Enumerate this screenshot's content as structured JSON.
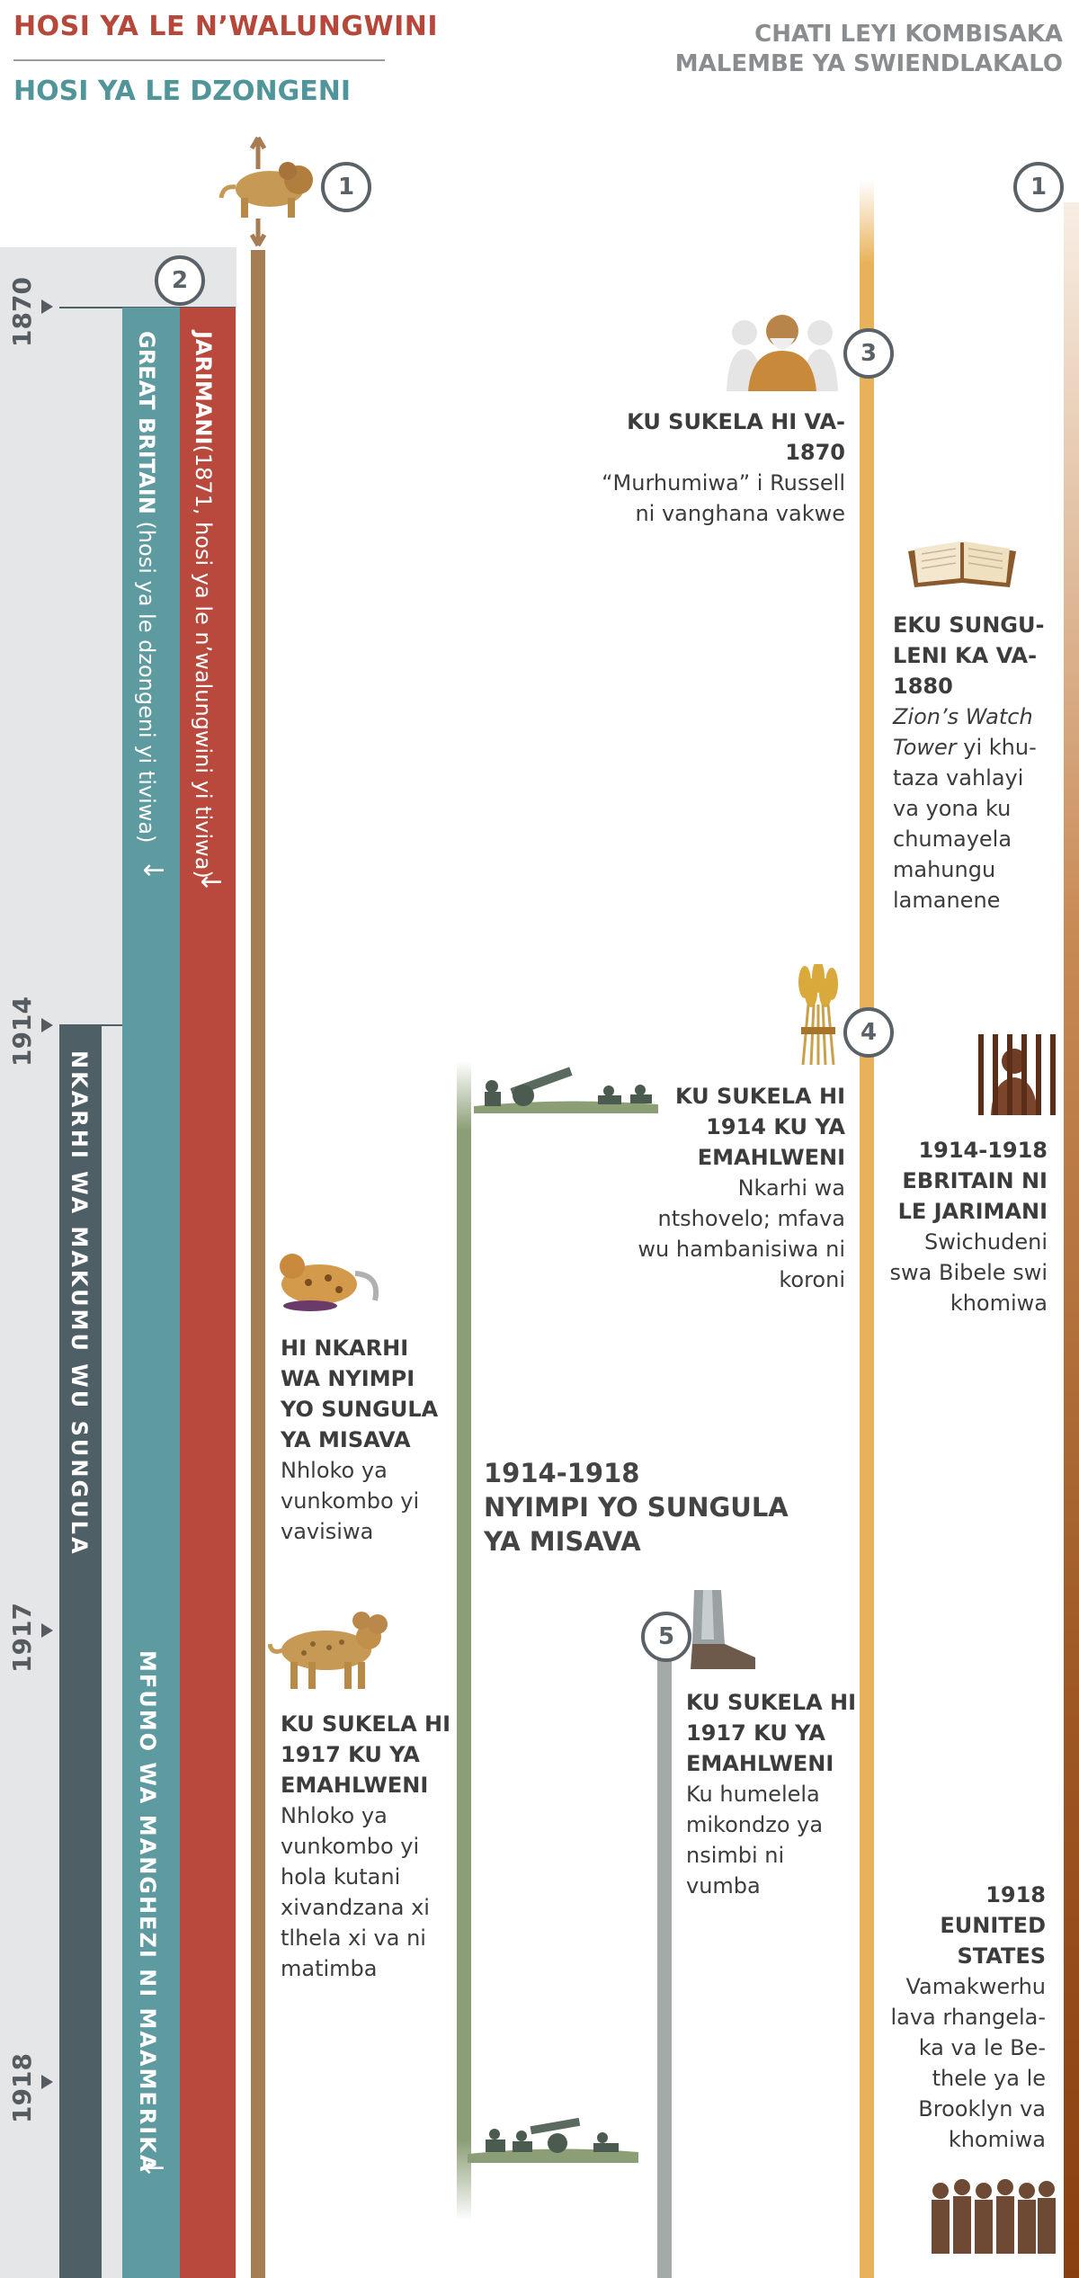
{
  "header": {
    "title_top": "HOSI YA LE N’WALUNGWINI",
    "title_bottom": "HOSI YA LE DZONGENI",
    "right_line1": "CHATI LEYI KOMBISAKA",
    "right_line2": "MALEMBE YA SWIENDLAKALO"
  },
  "years": [
    "1870",
    "1914",
    "1917",
    "1918"
  ],
  "bars": {
    "red_bold": "JARIMANI",
    "red_rest": "(1871, hosi ya le n’walungwini yi tiviwa)",
    "teal_bold": "GREAT BRITAIN",
    "teal_rest": " (hosi ya le dzongeni yi tiviwa)",
    "teal_lower": "MFUMO WA MANGHEZI NI MAAMERIKA",
    "slate": "NKARHI WA MAKUMU WU SUNGULA",
    "arrow": "↓"
  },
  "markers": [
    "1",
    "2",
    "1",
    "3",
    "4",
    "5"
  ],
  "events": {
    "lion_war_title": "HI NKARHI WA NYIMPI YO SUNGULA YA MISAVA",
    "lion_war_body": "Nhloko ya vunkombo yi vavisiwa",
    "lion_1917_title": "KU SUKELA HI 1917 KU YA EMAHLWENI",
    "lion_1917_body": "Nhloko ya vunkombo yi hola kutani xivandzana xi tlhela xi va ni matimba",
    "war_line1": "1914-1918",
    "war_line2": "NYIMPI YO SUNGULA YA MISAVA",
    "russell_title": "KU SUKELA HI VA-1870",
    "russell_body": "“Murhumiwa” i Russell ni vanghana vakwe",
    "harvest_title": "KU SUKELA HI 1914 KU YA EMAHLWENI",
    "harvest_body": "Nkarhi wa ntshovelo; mfava wu hambanisiwa ni koroni",
    "feet_title": "KU SUKELA HI 1917 KU YA EMAHLWENI",
    "feet_body": "Ku humelela mikondzo ya nsimbi ni vumba",
    "zion_title": "EKU SUNGU-LENI KA VA-1880",
    "zion_italic": "Zion’s Watch Tower",
    "zion_body": " yi khu-taza vahlayi va yona ku chumayela mahungu lamanene",
    "prison_title": "1914-1918 EBRITAIN NI LE JARIMANI",
    "prison_body": "Swichudeni swa Bibele swi khomiwa",
    "us_title": "1918 EUNITED STATES",
    "us_body": "Vamakwerhu lava rhangela-ka va le Be-thele ya le Brooklyn va khomiwa"
  },
  "icons": [
    "lion-beast-icon",
    "russell-portrait-icon",
    "open-bible-icon",
    "wheat-sheaf-icon",
    "soldiers-cannon-icon",
    "prisoner-bars-icon",
    "wounded-beast-icon",
    "iron-clay-feet-icon",
    "brothers-group-icon"
  ]
}
